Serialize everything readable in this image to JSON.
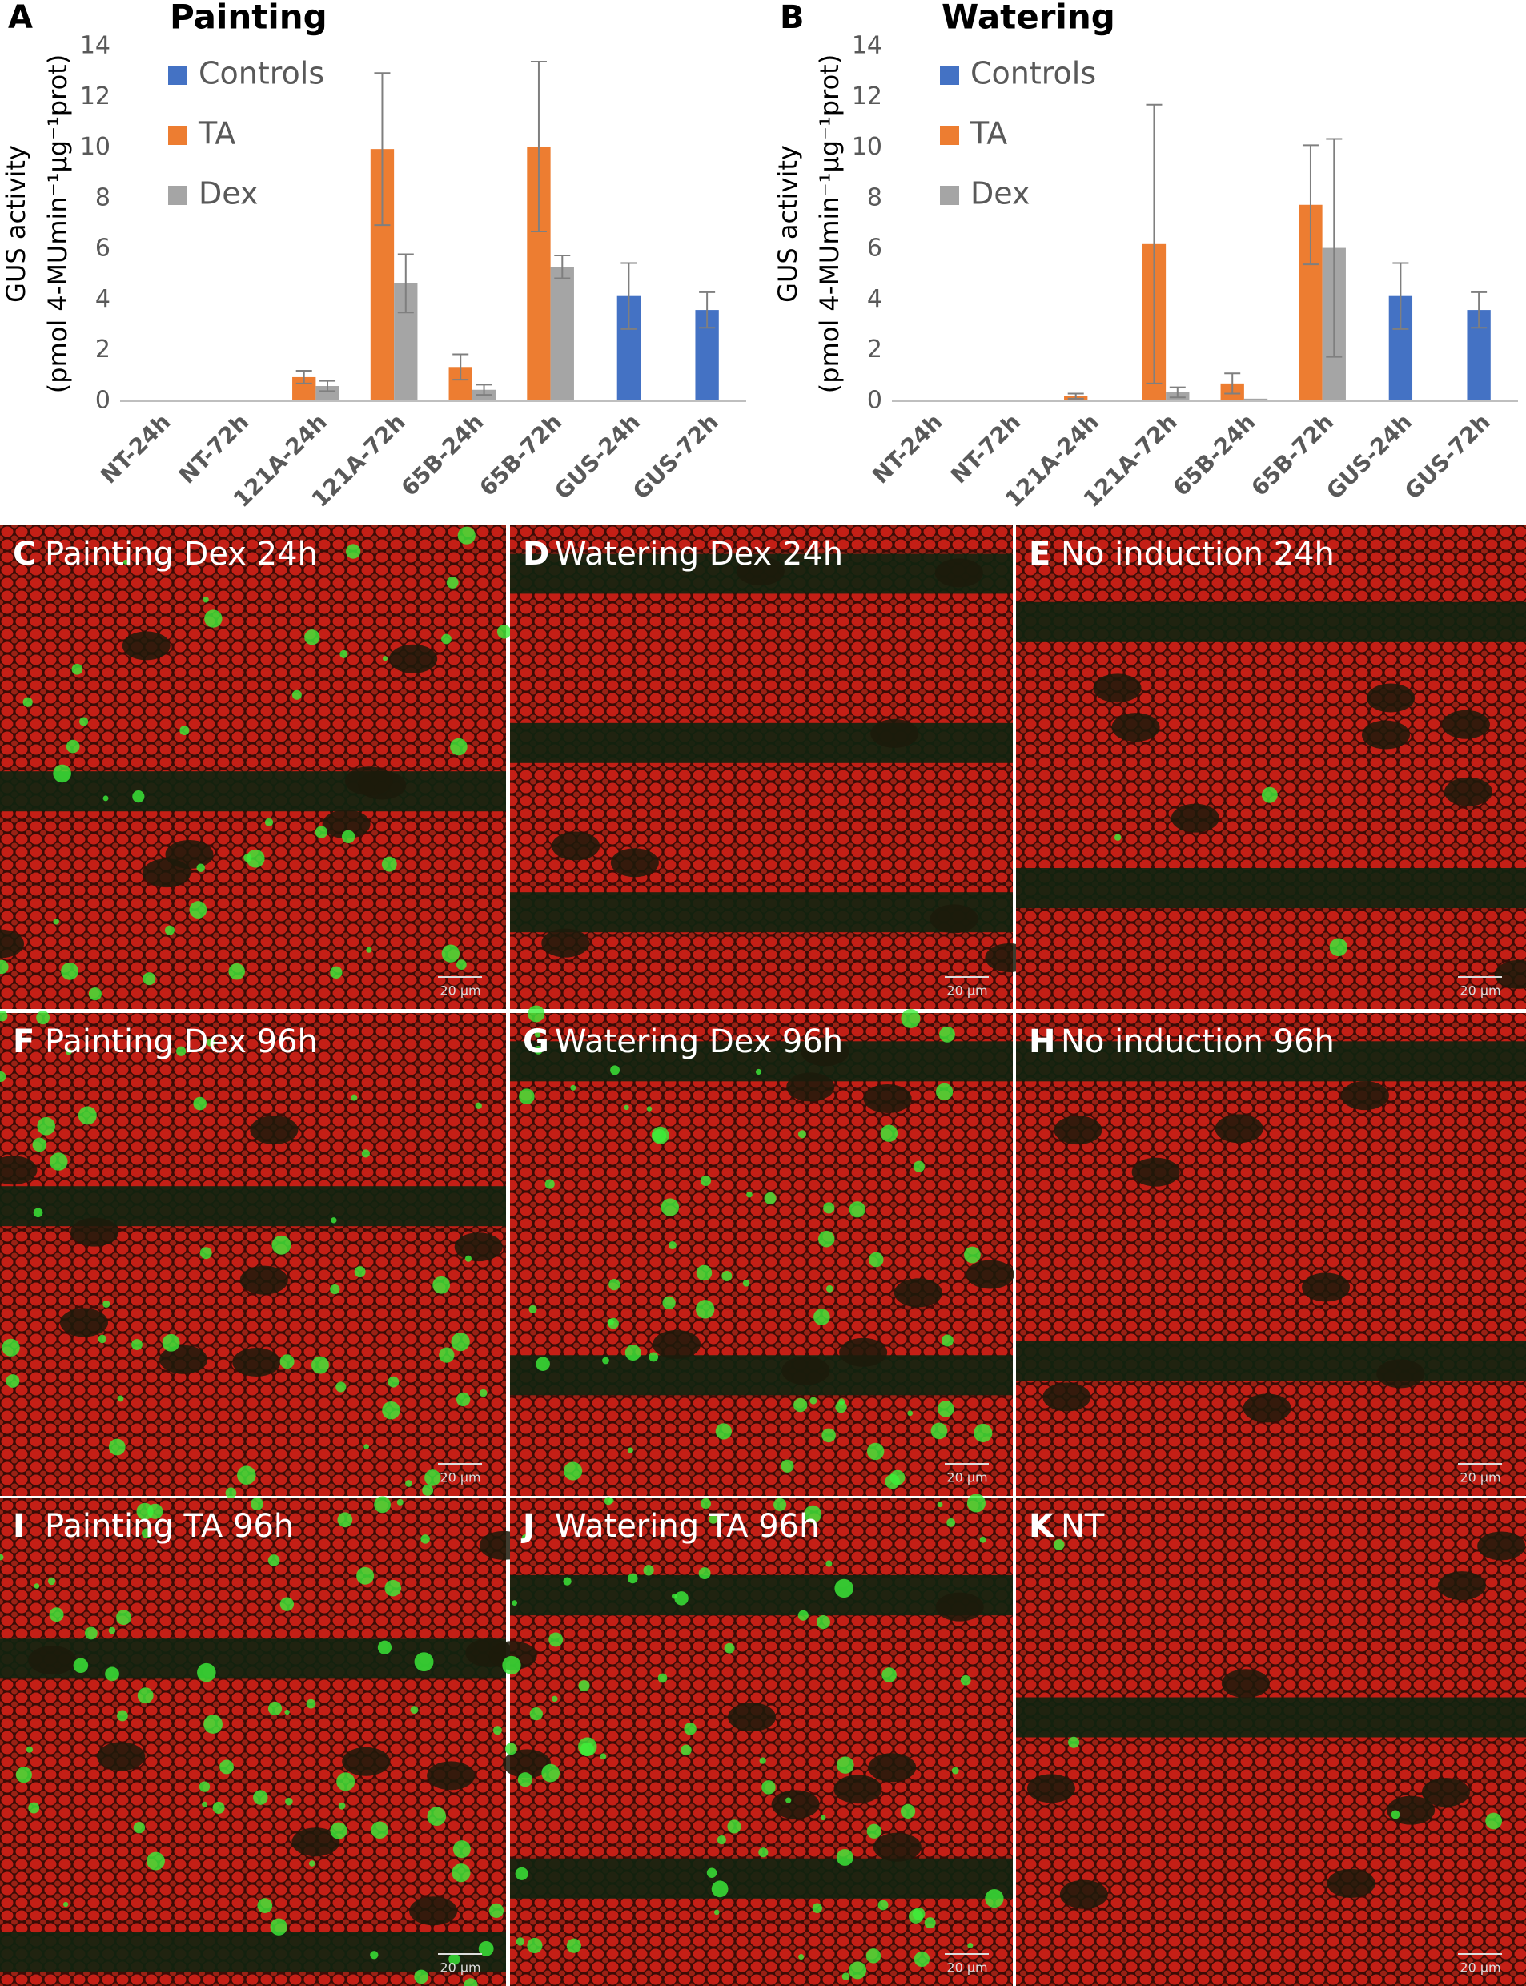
{
  "chart_data": [
    {
      "type": "bar",
      "panel_label": "A",
      "title": "Painting",
      "y_label": [
        "GUS activity",
        "(pmol 4-MUmin⁻¹µg⁻¹prot)"
      ],
      "categories": [
        "NT-24h",
        "NT-72h",
        "121A-24h",
        "121A-72h",
        "65B-24h",
        "65B-72h",
        "GUS-24h",
        "GUS-72h"
      ],
      "series": [
        {
          "name": "Controls",
          "color": "#4472c4",
          "values": [
            null,
            null,
            null,
            null,
            null,
            null,
            4.15,
            3.6
          ],
          "errors": [
            null,
            null,
            null,
            null,
            null,
            null,
            1.3,
            0.7
          ]
        },
        {
          "name": "TA",
          "color": "#ed7d31",
          "values": [
            0,
            0,
            0.95,
            9.95,
            1.35,
            10.05,
            null,
            null
          ],
          "errors": [
            null,
            null,
            0.25,
            3.0,
            0.5,
            3.35,
            null,
            null
          ]
        },
        {
          "name": "Dex",
          "color": "#a5a5a5",
          "values": [
            0,
            0.02,
            0.6,
            4.65,
            0.45,
            5.3,
            null,
            null
          ],
          "errors": [
            null,
            null,
            0.2,
            1.15,
            0.2,
            0.45,
            null,
            null
          ]
        }
      ],
      "ylim": [
        0,
        14
      ],
      "yticks": [
        0,
        2,
        4,
        6,
        8,
        10,
        12,
        14
      ],
      "grid": false,
      "legend": "top-left"
    },
    {
      "type": "bar",
      "panel_label": "B",
      "title": "Watering",
      "y_label": [
        "GUS activity",
        "(pmol 4-MUmin⁻¹µg⁻¹prot)"
      ],
      "categories": [
        "NT-24h",
        "NT-72h",
        "121A-24h",
        "121A-72h",
        "65B-24h",
        "65B-72h",
        "GUS-24h",
        "GUS-72h"
      ],
      "series": [
        {
          "name": "Controls",
          "color": "#4472c4",
          "values": [
            null,
            null,
            null,
            null,
            null,
            null,
            4.15,
            3.6
          ],
          "errors": [
            null,
            null,
            null,
            null,
            null,
            null,
            1.3,
            0.7
          ]
        },
        {
          "name": "TA",
          "color": "#ed7d31",
          "values": [
            0,
            0,
            0.2,
            6.2,
            0.7,
            7.75,
            null,
            null
          ],
          "errors": [
            null,
            null,
            0.1,
            5.5,
            0.4,
            2.35,
            null,
            null
          ]
        },
        {
          "name": "Dex",
          "color": "#a5a5a5",
          "values": [
            0,
            0.02,
            0.02,
            0.35,
            0.1,
            6.05,
            null,
            null
          ],
          "errors": [
            null,
            null,
            null,
            0.2,
            null,
            4.3,
            null,
            null
          ]
        }
      ],
      "ylim": [
        0,
        14
      ],
      "yticks": [
        0,
        2,
        4,
        6,
        8,
        10,
        12,
        14
      ],
      "grid": false,
      "legend": "top-left"
    }
  ],
  "panels": [
    {
      "letter": "C",
      "title": "Painting Dex 24h",
      "scale_bar": "20 µm"
    },
    {
      "letter": "D",
      "title": "Watering Dex 24h",
      "scale_bar": "20 µm"
    },
    {
      "letter": "E",
      "title": "No induction 24h",
      "scale_bar": "20 µm"
    },
    {
      "letter": "F",
      "title": "Painting Dex 96h",
      "scale_bar": "20 µm"
    },
    {
      "letter": "G",
      "title": "Watering Dex 96h",
      "scale_bar": "20 µm"
    },
    {
      "letter": "H",
      "title": "No induction 96h",
      "scale_bar": "20 µm"
    },
    {
      "letter": "I",
      "title": "Painting TA 96h",
      "scale_bar": "20 µm"
    },
    {
      "letter": "J",
      "title": "Watering TA 96h",
      "scale_bar": "20 µm"
    },
    {
      "letter": "K",
      "title": "NT",
      "scale_bar": "20 µm"
    }
  ]
}
